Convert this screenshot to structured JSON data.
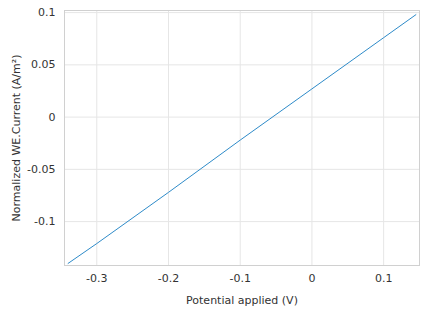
{
  "chart_data": {
    "type": "line",
    "x_label": "Potential applied (V)",
    "y_label": "Normalized WE.Current (A/m²)",
    "x": [
      -0.34,
      -0.3,
      -0.2,
      -0.1,
      0,
      0.1,
      0.145
    ],
    "values": [
      -0.14,
      -0.121,
      -0.072,
      -0.022,
      0.027,
      0.076,
      0.098
    ],
    "color": "#2e8bc9",
    "xlim": [
      -0.345,
      0.15
    ],
    "xticks": [
      -0.3,
      -0.2,
      -0.1,
      0,
      0.1
    ],
    "ylim": [
      -0.142,
      0.102
    ],
    "yticks": [
      -0.1,
      -0.05,
      0,
      0.05,
      0.1
    ],
    "grid": true
  }
}
